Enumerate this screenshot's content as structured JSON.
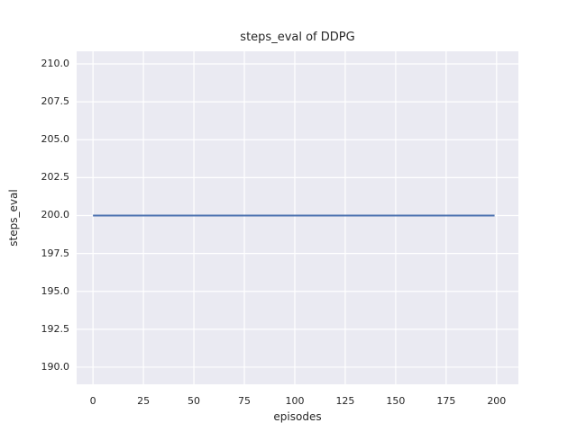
{
  "chart_data": {
    "type": "line",
    "title": "steps_eval of DDPG",
    "xlabel": "episodes",
    "ylabel": "steps_eval",
    "xlim": [
      -8.1,
      210.8
    ],
    "ylim": [
      188.87,
      210.83
    ],
    "grid": true,
    "legend_position": "none",
    "xticks": [
      {
        "value": 0,
        "label": "0"
      },
      {
        "value": 25,
        "label": "25"
      },
      {
        "value": 50,
        "label": "50"
      },
      {
        "value": 75,
        "label": "75"
      },
      {
        "value": 100,
        "label": "100"
      },
      {
        "value": 125,
        "label": "125"
      },
      {
        "value": 150,
        "label": "150"
      },
      {
        "value": 175,
        "label": "175"
      },
      {
        "value": 200,
        "label": "200"
      }
    ],
    "yticks": [
      {
        "value": 190.0,
        "label": "190.0"
      },
      {
        "value": 192.5,
        "label": "192.5"
      },
      {
        "value": 195.0,
        "label": "195.0"
      },
      {
        "value": 197.5,
        "label": "197.5"
      },
      {
        "value": 200.0,
        "label": "200.0"
      },
      {
        "value": 202.5,
        "label": "202.5"
      },
      {
        "value": 205.0,
        "label": "205.0"
      },
      {
        "value": 207.5,
        "label": "207.5"
      },
      {
        "value": 210.0,
        "label": "210.0"
      }
    ],
    "series": [
      {
        "name": "steps_eval",
        "constant_value": 200,
        "x_range": [
          0,
          199
        ],
        "points": [
          [
            0,
            200
          ],
          [
            199,
            200
          ]
        ],
        "color": "#4c72b0"
      }
    ],
    "colors": {
      "figure_background": "#ffffff",
      "plot_background": "#eaeaf2",
      "grid": "#ffffff",
      "line": "#4c72b0",
      "text": "#262626"
    }
  }
}
